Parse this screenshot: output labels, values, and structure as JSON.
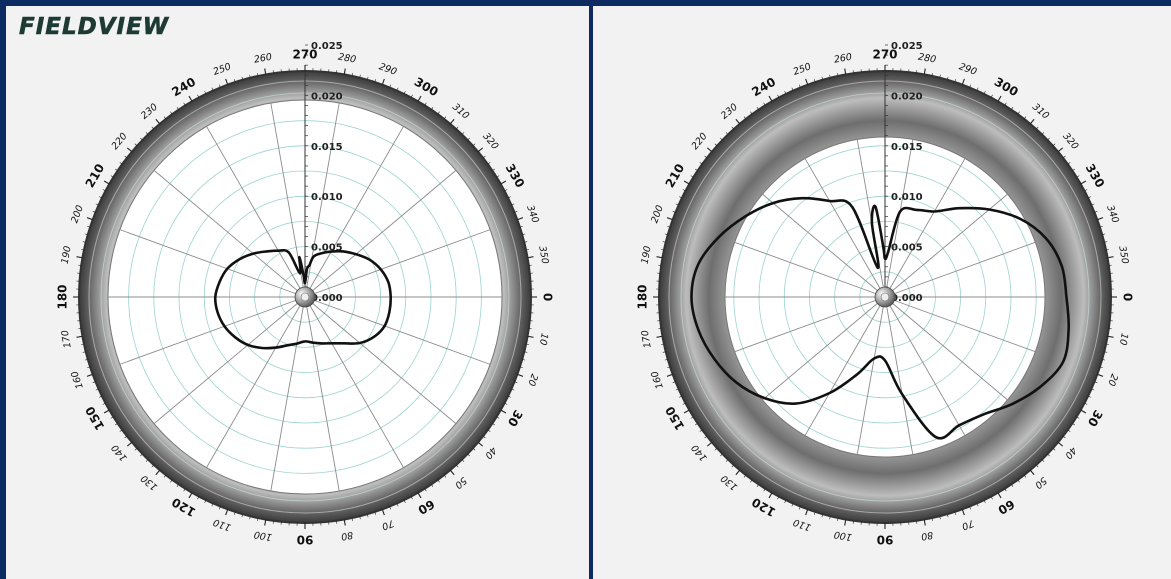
{
  "brand": "FIELDVIEW",
  "colors": {
    "page_background": "#0e2a63",
    "panel_background": "#f2f2f2",
    "ring_gray": "#8a8a8a",
    "grid_circle": "#9ad4cf",
    "spoke": "#8c8c8c",
    "trace": "#111111"
  },
  "chart_data": [
    {
      "type": "polar-line",
      "panel": "left",
      "radial_ticks": [
        "0.000",
        "0.005",
        "0.010",
        "0.015",
        "0.020",
        "0.025"
      ],
      "radial_range": [
        0,
        0.025
      ],
      "angle_direction": "clockwise",
      "angle_zero_position": "right",
      "angle_major_labels": [
        "0",
        "30",
        "60",
        "90",
        "120",
        "150",
        "180",
        "210",
        "240",
        "270",
        "300",
        "330"
      ],
      "angle_minor_labels": [
        "10",
        "20",
        "40",
        "50",
        "70",
        "80",
        "100",
        "110",
        "130",
        "140",
        "160",
        "170",
        "190",
        "200",
        "220",
        "230",
        "250",
        "260",
        "280",
        "290",
        "310",
        "320",
        "340",
        "350"
      ],
      "grid": true,
      "series": [
        {
          "theta": [
            0,
            10,
            20,
            30,
            40,
            50,
            60,
            70,
            80,
            90,
            100,
            110,
            120,
            130,
            140,
            150,
            160,
            170,
            180,
            190,
            200,
            210,
            220,
            230,
            240,
            250,
            258,
            262,
            266,
            270,
            274,
            278,
            282,
            290,
            300,
            310,
            320,
            330,
            340,
            350
          ],
          "r": [
            0.0085,
            0.0085,
            0.0084,
            0.0079,
            0.0071,
            0.006,
            0.0053,
            0.0049,
            0.0046,
            0.0044,
            0.0047,
            0.0051,
            0.0058,
            0.0066,
            0.0074,
            0.008,
            0.0085,
            0.0088,
            0.0089,
            0.0086,
            0.0082,
            0.0075,
            0.0067,
            0.0059,
            0.0053,
            0.0047,
            0.0024,
            0.004,
            0.0022,
            0.0014,
            0.0028,
            0.0032,
            0.0041,
            0.0046,
            0.0052,
            0.0059,
            0.0066,
            0.0074,
            0.008,
            0.0084
          ]
        }
      ]
    },
    {
      "type": "polar-line",
      "panel": "right",
      "radial_ticks": [
        "0.000",
        "0.005",
        "0.010",
        "0.015",
        "0.020",
        "0.025"
      ],
      "radial_range": [
        0,
        0.025
      ],
      "angle_direction": "clockwise",
      "angle_zero_position": "right",
      "angle_major_labels": [
        "0",
        "30",
        "60",
        "90",
        "120",
        "150",
        "180",
        "210",
        "240",
        "270",
        "300",
        "330"
      ],
      "angle_minor_labels": [
        "10",
        "20",
        "40",
        "50",
        "70",
        "80",
        "100",
        "110",
        "130",
        "140",
        "160",
        "170",
        "190",
        "200",
        "220",
        "230",
        "250",
        "260",
        "280",
        "290",
        "310",
        "320",
        "340",
        "350"
      ],
      "grid": true,
      "series": [
        {
          "theta": [
            0,
            10,
            20,
            30,
            40,
            50,
            60,
            70,
            80,
            90,
            100,
            110,
            120,
            130,
            140,
            150,
            160,
            170,
            180,
            190,
            200,
            210,
            220,
            230,
            240,
            250,
            256,
            260,
            264,
            268,
            270,
            274,
            280,
            290,
            300,
            310,
            320,
            330,
            340,
            350
          ],
          "r": [
            0.018,
            0.0185,
            0.0188,
            0.0178,
            0.0165,
            0.0152,
            0.0147,
            0.0148,
            0.0098,
            0.0063,
            0.0062,
            0.0082,
            0.011,
            0.0138,
            0.0156,
            0.017,
            0.018,
            0.0188,
            0.0192,
            0.0188,
            0.0175,
            0.016,
            0.0145,
            0.0128,
            0.011,
            0.0095,
            0.003,
            0.0075,
            0.009,
            0.005,
            0.0038,
            0.0045,
            0.0086,
            0.0092,
            0.0098,
            0.0115,
            0.0135,
            0.0155,
            0.017,
            0.0178
          ]
        }
      ]
    }
  ]
}
